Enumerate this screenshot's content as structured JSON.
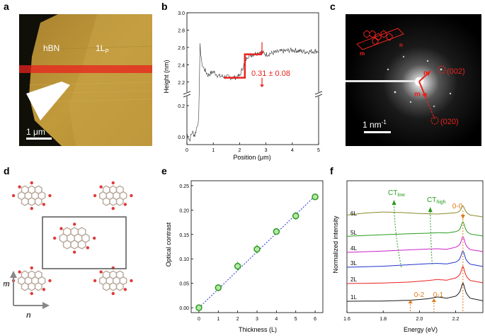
{
  "panels": {
    "a": "a",
    "b": "b",
    "c": "c",
    "d": "d",
    "e": "e",
    "f": "f"
  },
  "colors": {
    "red": "#e8221d",
    "accent_dashed": "#cc0000",
    "green": "#2a9c1e",
    "orange": "#e07a16",
    "blue_fit": "#2233cc"
  },
  "panel_a": {
    "label_hbn": "hBN",
    "label_1lp": "1L",
    "label_1lp_sub": "P",
    "scale_bar": "1 μm"
  },
  "panel_b": {
    "ylabel": "Height (nm)",
    "xlabel": "Position (μm)",
    "yticks_upper": [
      "2.2",
      "2.4",
      "2.6",
      "2.8",
      "3.0"
    ],
    "yticks_lower": [
      "0.0",
      "0.2"
    ],
    "xticks": [
      "0",
      "1",
      "2",
      "3",
      "4",
      "5"
    ],
    "annotation": "0.31 ± 0.08",
    "chart_data": {
      "type": "line",
      "title": "",
      "xlabel": "Position (μm)",
      "ylabel": "Height (nm)",
      "xlim": [
        0,
        5
      ],
      "ylim_lower": [
        -0.05,
        0.25
      ],
      "ylim_upper": [
        2.1,
        3.0
      ],
      "step_fit": {
        "x": [
          1.4,
          2.2,
          2.2,
          2.85
        ],
        "y": [
          2.25,
          2.25,
          2.52,
          2.52
        ]
      },
      "step_height": "0.31 ± 0.08",
      "x": [
        0.0,
        0.1,
        0.2,
        0.3,
        0.4,
        0.45,
        0.5,
        0.55,
        0.6,
        0.8,
        1.0,
        1.2,
        1.5,
        1.8,
        2.0,
        2.2,
        2.3,
        2.5,
        2.8,
        3.0,
        3.5,
        4.0,
        4.5,
        5.0
      ],
      "y": [
        0.02,
        -0.02,
        0.03,
        0.01,
        0.08,
        0.12,
        2.62,
        2.45,
        2.38,
        2.28,
        2.32,
        2.27,
        2.26,
        2.25,
        2.27,
        2.43,
        2.5,
        2.52,
        2.55,
        2.52,
        2.55,
        2.57,
        2.55,
        2.56
      ]
    }
  },
  "panel_c": {
    "scale_bar": "1 nm",
    "scale_sup": "-1",
    "spot_002": "(002)",
    "spot_020": "(020)",
    "lab_n": "n",
    "lab_m": "m"
  },
  "panel_d": {
    "axis_m": "m",
    "axis_n": "n"
  },
  "panel_e": {
    "ylabel": "Optical contrast",
    "xlabel": "Thickness (L)",
    "yticks": [
      "0.00",
      "0.05",
      "0.10",
      "0.15",
      "0.20",
      "0.25"
    ],
    "xticks": [
      "0",
      "1",
      "2",
      "3",
      "4",
      "5",
      "6"
    ],
    "chart_data": {
      "type": "scatter",
      "title": "",
      "xlabel": "Thickness (L)",
      "ylabel": "Optical contrast",
      "x": [
        0,
        1,
        2,
        3,
        4,
        5,
        6
      ],
      "values": [
        0.0,
        0.041,
        0.085,
        0.12,
        0.156,
        0.188,
        0.227
      ],
      "errors": [
        0.003,
        0.007,
        0.009,
        0.009,
        0.005,
        0.008,
        0.003
      ],
      "fit": {
        "x": [
          0,
          6
        ],
        "y": [
          0.0,
          0.229
        ]
      },
      "xlim": [
        -0.4,
        6.4
      ],
      "ylim": [
        -0.01,
        0.26
      ]
    }
  },
  "panel_f": {
    "ylabel": "Normalized intensity",
    "xlabel": "Energy (eV)",
    "xticks": [
      "1.6",
      "1.8",
      "2.0",
      "2.2"
    ],
    "layers": [
      "6L",
      "5L",
      "4L",
      "3L",
      "2L",
      "1L"
    ],
    "ct_low": "CT",
    "ct_low_sub": "low",
    "ct_high": "CT",
    "ct_high_sub": "high",
    "peak_00": "0-0",
    "peak_01": "0-1",
    "peak_02": "0-2",
    "chart_data": {
      "type": "line",
      "title": "",
      "xlabel": "Energy (eV)",
      "ylabel": "Normalized intensity",
      "xlim": [
        1.6,
        2.35
      ],
      "series": [
        {
          "name": "1L",
          "color": "#1a1a1a",
          "x": [
            1.6,
            1.8,
            1.95,
            2.05,
            2.1,
            2.15,
            2.2,
            2.24,
            2.28,
            2.35
          ],
          "y": [
            0.0,
            0.01,
            0.04,
            0.1,
            0.17,
            0.12,
            0.2,
            0.45,
            0.12,
            0.02
          ]
        },
        {
          "name": "2L",
          "color": "#e8221d",
          "x": [
            1.6,
            1.8,
            1.95,
            2.05,
            2.1,
            2.15,
            2.2,
            2.24,
            2.28,
            2.35
          ],
          "y": [
            0.0,
            0.02,
            0.06,
            0.12,
            0.16,
            0.13,
            0.22,
            0.4,
            0.12,
            0.03
          ]
        },
        {
          "name": "3L",
          "color": "#2233cc",
          "x": [
            1.6,
            1.8,
            1.95,
            2.05,
            2.1,
            2.15,
            2.2,
            2.24,
            2.28,
            2.35
          ],
          "y": [
            0.0,
            0.04,
            0.1,
            0.14,
            0.15,
            0.13,
            0.2,
            0.38,
            0.12,
            0.03
          ]
        },
        {
          "name": "4L",
          "color": "#cc22cc",
          "x": [
            1.6,
            1.8,
            1.95,
            2.05,
            2.1,
            2.15,
            2.2,
            2.24,
            2.28,
            2.35
          ],
          "y": [
            0.0,
            0.05,
            0.1,
            0.13,
            0.14,
            0.12,
            0.2,
            0.35,
            0.11,
            0.03
          ]
        },
        {
          "name": "5L",
          "color": "#2a9c1e",
          "x": [
            1.6,
            1.8,
            1.95,
            2.05,
            2.1,
            2.15,
            2.2,
            2.24,
            2.28,
            2.35
          ],
          "y": [
            0.02,
            0.08,
            0.12,
            0.14,
            0.16,
            0.15,
            0.2,
            0.32,
            0.11,
            0.03
          ]
        },
        {
          "name": "6L",
          "color": "#8a8a2a",
          "x": [
            1.6,
            1.7,
            1.8,
            1.9,
            2.0,
            2.1,
            2.2,
            2.24,
            2.28,
            2.35
          ],
          "y": [
            0.1,
            0.18,
            0.22,
            0.2,
            0.16,
            0.14,
            0.19,
            0.28,
            0.1,
            0.03
          ]
        }
      ]
    }
  }
}
